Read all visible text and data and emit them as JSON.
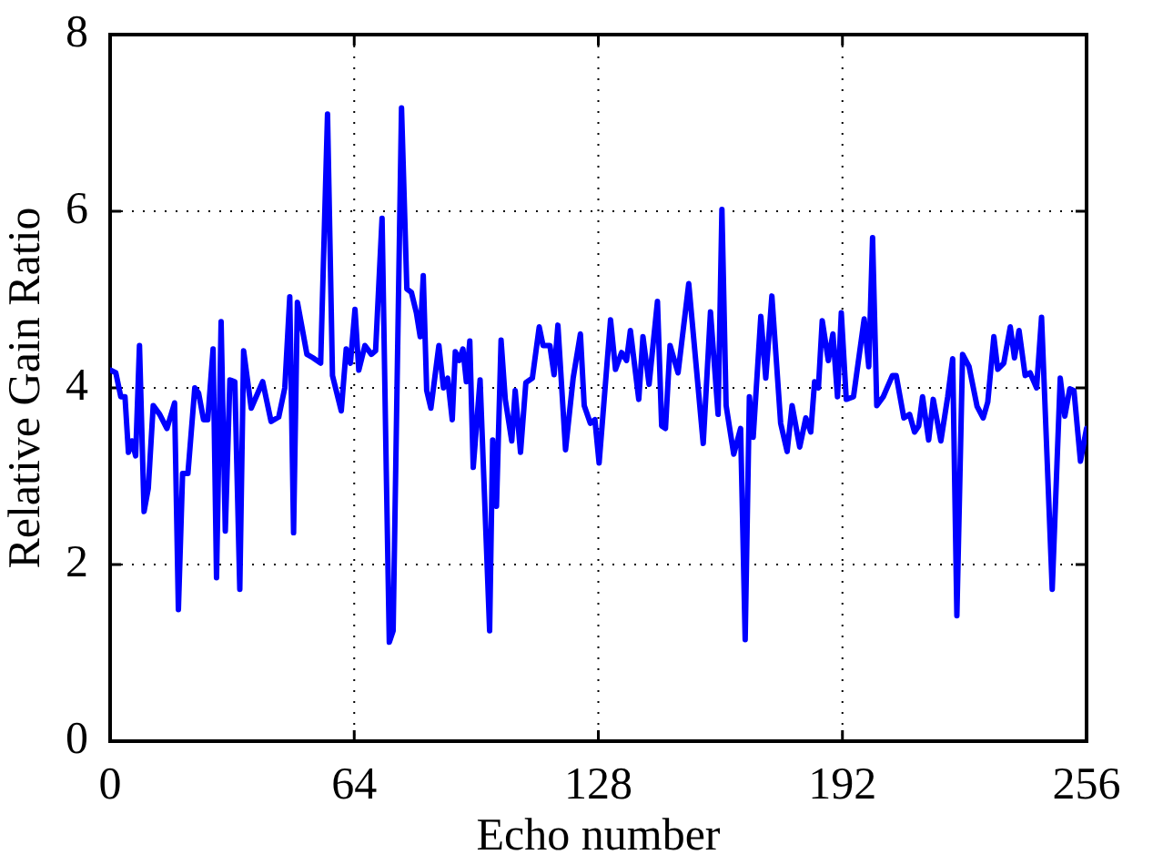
{
  "chart_data": {
    "type": "line",
    "xlabel": "Echo number",
    "ylabel": "Relative Gain Ratio",
    "xlim": [
      0,
      256
    ],
    "xticks": [
      0,
      64,
      128,
      192,
      256
    ],
    "ylim": [
      0,
      8
    ],
    "yticks": [
      0,
      2,
      4,
      6,
      8
    ],
    "grid": true,
    "legend": false,
    "marker": "none",
    "line_style": "solid",
    "series": [
      {
        "color": "#0000ff",
        "x": [
          0.2,
          1.5,
          2.8,
          3.9,
          4.8,
          5.7,
          6.7,
          7.7,
          8.9,
          10,
          11.3,
          13,
          14.9,
          16.9,
          17.9,
          19,
          20.4,
          22.2,
          23.2,
          24.5,
          25.6,
          27,
          27.9,
          29.1,
          30.2,
          31.4,
          32.7,
          34,
          35,
          37,
          40,
          42.2,
          44.2,
          45.8,
          47.1,
          48.1,
          49.1,
          51.6,
          53.2,
          55.2,
          57,
          58.3,
          60.6,
          61.9,
          63,
          64.2,
          65.2,
          66.8,
          68.5,
          69.6,
          71.3,
          72.4,
          73.2,
          74.2,
          76.4,
          77.8,
          79,
          80.3,
          81.3,
          82.1,
          83,
          84.1,
          86.2,
          87.4,
          88.5,
          89.7,
          90.5,
          91.5,
          92.5,
          93.4,
          94.3,
          95.2,
          97,
          99.5,
          100.3,
          101.3,
          102.5,
          103.6,
          105.3,
          106.2,
          107.6,
          109,
          110.7,
          112.5,
          113.5,
          115.3,
          116.4,
          117.4,
          119.4,
          121.4,
          123.3,
          124.3,
          125.9,
          127.1,
          128.2,
          131.2,
          132.5,
          134.1,
          135.4,
          136.4,
          138.6,
          139.7,
          141.3,
          143.5,
          144.6,
          145.6,
          146.8,
          148.9,
          151.7,
          155.5,
          157.4,
          159.4,
          160.4,
          161.5,
          163.5,
          165.3,
          166.5,
          167.6,
          168.6,
          170.6,
          171.9,
          173.5,
          175.8,
          177.5,
          178.8,
          180.8,
          182.4,
          183.7,
          184.7,
          185.7,
          186.7,
          188.3,
          189.5,
          190.7,
          191.7,
          193,
          194.9,
          197.7,
          198.9,
          199.9,
          201,
          202.7,
          205.1,
          206.1,
          208.1,
          209.6,
          210.9,
          212,
          213,
          214.6,
          215.8,
          217.8,
          219.6,
          220.9,
          222,
          223.5,
          225.2,
          227.3,
          228.9,
          230.1,
          231.7,
          232.7,
          234.3,
          236,
          237.1,
          238.3,
          239.9,
          241.2,
          242.9,
          244.2,
          247,
          249.1,
          250.3,
          251.6,
          252.7,
          254.4,
          256
        ],
        "values": [
          4.2,
          4.17,
          3.9,
          3.9,
          3.27,
          3.4,
          3.23,
          4.48,
          2.6,
          2.86,
          3.8,
          3.7,
          3.54,
          3.83,
          1.49,
          3.03,
          3.03,
          4.0,
          3.94,
          3.64,
          3.64,
          4.44,
          1.85,
          4.75,
          2.38,
          4.09,
          4.07,
          1.72,
          4.42,
          3.77,
          4.07,
          3.62,
          3.67,
          4.0,
          5.03,
          2.36,
          4.97,
          4.38,
          4.34,
          4.28,
          7.1,
          4.14,
          3.74,
          4.44,
          4.28,
          4.89,
          4.2,
          4.48,
          4.38,
          4.42,
          5.92,
          3.07,
          1.12,
          1.25,
          7.17,
          5.12,
          5.08,
          4.85,
          4.58,
          5.27,
          3.97,
          3.77,
          4.48,
          4.0,
          4.11,
          3.64,
          4.41,
          4.31,
          4.44,
          4.07,
          4.53,
          3.1,
          4.09,
          1.25,
          3.41,
          2.66,
          4.54,
          3.87,
          3.4,
          3.97,
          3.27,
          4.06,
          4.11,
          4.69,
          4.48,
          4.48,
          4.15,
          4.71,
          3.3,
          4.11,
          4.61,
          3.8,
          3.6,
          3.64,
          3.15,
          4.77,
          4.21,
          4.4,
          4.31,
          4.65,
          3.87,
          4.58,
          4.04,
          4.98,
          3.57,
          3.54,
          4.48,
          4.17,
          5.18,
          3.37,
          4.86,
          3.7,
          6.02,
          3.8,
          3.25,
          3.54,
          1.15,
          3.9,
          3.44,
          4.81,
          4.11,
          5.04,
          3.6,
          3.28,
          3.8,
          3.33,
          3.66,
          3.5,
          4.07,
          4.0,
          4.76,
          4.31,
          4.61,
          3.9,
          4.85,
          3.87,
          3.9,
          4.78,
          4.24,
          5.7,
          3.8,
          3.9,
          4.14,
          4.14,
          3.66,
          3.7,
          3.5,
          3.57,
          3.9,
          3.41,
          3.87,
          3.4,
          3.9,
          4.33,
          1.42,
          4.38,
          4.24,
          3.79,
          3.66,
          3.84,
          4.58,
          4.21,
          4.28,
          4.69,
          4.34,
          4.65,
          4.14,
          4.17,
          4.0,
          4.8,
          1.72,
          4.11,
          3.68,
          3.99,
          3.97,
          3.17,
          3.54
        ]
      }
    ]
  }
}
